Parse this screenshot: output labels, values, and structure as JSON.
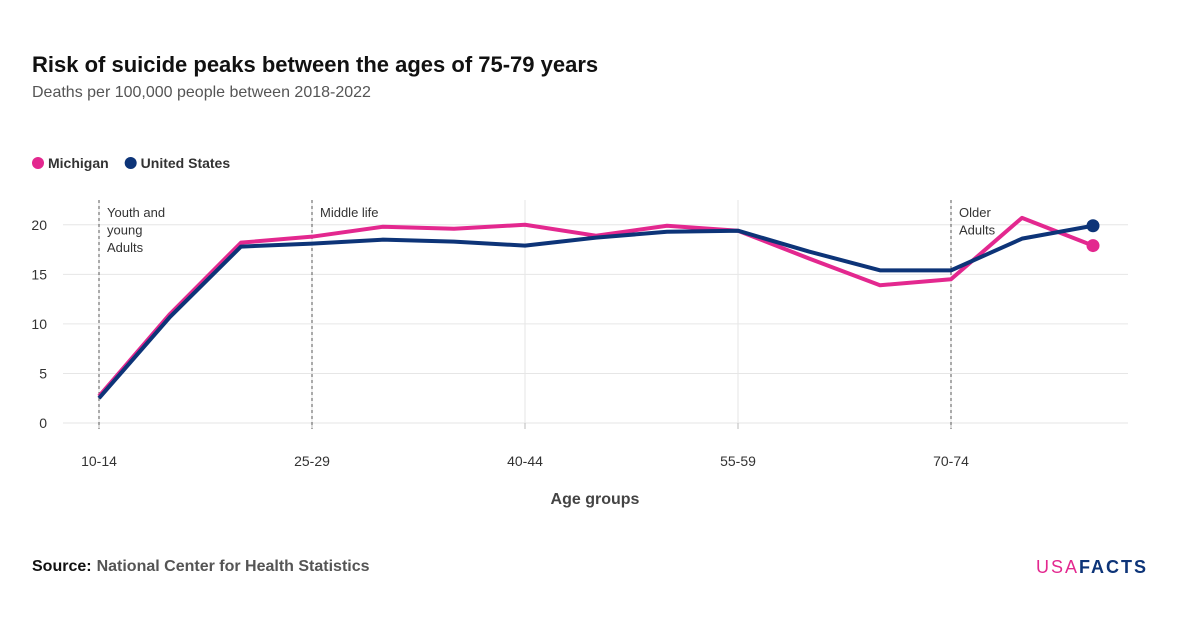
{
  "chart_data": {
    "type": "line",
    "title": "Risk of suicide peaks between the ages of 75-79 years",
    "subtitle": "Deaths per 100,000 people between 2018-2022",
    "x_label": "Age groups",
    "categories": [
      "10-14",
      null,
      null,
      "25-29",
      null,
      null,
      "40-44",
      null,
      null,
      "55-59",
      null,
      null,
      "70-74",
      null,
      null
    ],
    "series": [
      {
        "name": "Michigan",
        "color": "#e3288f",
        "values": [
          2.7,
          11.0,
          18.2,
          18.8,
          19.8,
          19.6,
          20.0,
          18.9,
          19.9,
          19.4,
          16.6,
          13.9,
          14.5,
          20.7,
          17.9
        ]
      },
      {
        "name": "United States",
        "color": "#0d3478",
        "values": [
          2.5,
          10.7,
          17.8,
          18.1,
          18.5,
          18.3,
          17.9,
          18.7,
          19.3,
          19.4,
          17.3,
          15.4,
          15.4,
          18.6,
          19.9
        ]
      }
    ],
    "ylim": [
      0,
      22.5
    ],
    "yticks": [
      0,
      5,
      10,
      15,
      20
    ],
    "grid": true,
    "legend": "top-left",
    "annotations": [
      {
        "x": "10-14",
        "lines": [
          "Youth and",
          "young",
          "Adults"
        ]
      },
      {
        "x": "25-29",
        "lines": [
          "Middle life"
        ]
      },
      {
        "x": "70-74",
        "lines": [
          "Older",
          "Adults"
        ]
      }
    ]
  },
  "footer": {
    "source_label": "Source:",
    "source": "National Center for Health Statistics",
    "logo": [
      "USA",
      "FACTS"
    ]
  }
}
